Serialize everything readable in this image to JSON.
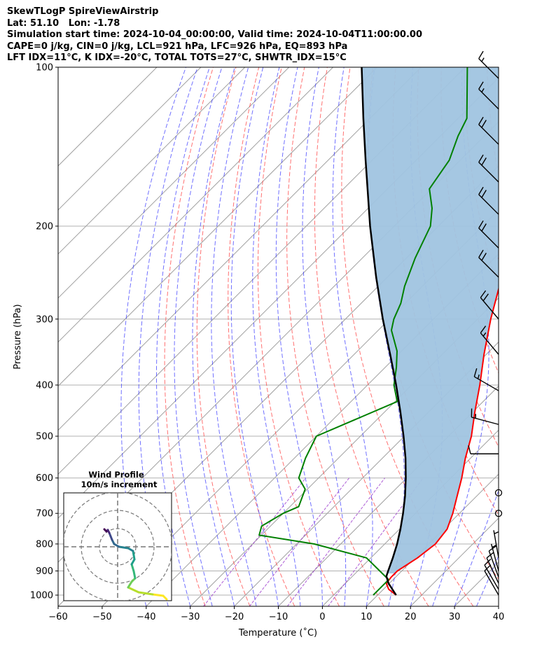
{
  "titles": {
    "line1": "SkewTLogP SpireViewAirstrip",
    "line2": "Lat: 51.10   Lon: -1.78",
    "line3": "Simulation start time: 2024-10-04_00:00:00, Valid time: 2024-10-04T11:00:00.00",
    "line4": "CAPE=0 j/kg, CIN=0 j/kg, LCL=921 hPa, LFC=926 hPa, EQ=893 hPa",
    "line5": "LFT IDX=11°C, K IDX=-20°C, TOTAL TOTS=27°C, SHWTR_IDX=15°C"
  },
  "chart_data": {
    "type": "line",
    "title": "SkewTLogP SpireViewAirstrip",
    "xlabel": "Temperature (˚C)",
    "ylabel": "Pressure (hPa)",
    "xlim": [
      -60,
      40
    ],
    "ylim": [
      1050,
      100
    ],
    "y_scale": "log",
    "x_ticks": [
      "−60",
      "−50",
      "−40",
      "−30",
      "−20",
      "−10",
      "0",
      "10",
      "20",
      "30",
      "40"
    ],
    "y_ticks": [
      "100",
      "200",
      "300",
      "400",
      "500",
      "600",
      "700",
      "800",
      "900",
      "1000"
    ],
    "grid": true,
    "colors": {
      "temperature": "#ff0000",
      "dewpoint": "#008000",
      "parcel": "#000000",
      "cape_fill": "#a0c4e0",
      "dry_adiabat": "#ff4d4d",
      "moist_adiabat": "#3333ff",
      "mixing_ratio": "#9933cc",
      "isotherm": "#a0a0a0"
    },
    "series": [
      {
        "key": "temperature",
        "points": [
          [
            1000,
            14.2
          ],
          [
            975,
            11.2
          ],
          [
            950,
            9.3
          ],
          [
            925,
            9.0
          ],
          [
            900,
            9.0
          ],
          [
            850,
            10.6
          ],
          [
            800,
            11.5
          ],
          [
            750,
            10.8
          ],
          [
            700,
            8.5
          ],
          [
            650,
            5.6
          ],
          [
            600,
            2.5
          ],
          [
            550,
            -1.2
          ],
          [
            500,
            -4.8
          ],
          [
            450,
            -9.5
          ],
          [
            400,
            -14.5
          ],
          [
            350,
            -20.5
          ],
          [
            300,
            -27.0
          ],
          [
            250,
            -34.0
          ],
          [
            230,
            -39.0
          ],
          [
            215,
            -38.5
          ],
          [
            200,
            -38.6
          ],
          [
            180,
            -40.5
          ],
          [
            160,
            -45.0
          ],
          [
            150,
            -47.5
          ],
          [
            140,
            -50.2
          ],
          [
            125,
            -53.6
          ],
          [
            100,
            -60.5
          ]
        ]
      },
      {
        "key": "dewpoint",
        "points": [
          [
            1000,
            9.0
          ],
          [
            975,
            9.0
          ],
          [
            950,
            9.0
          ],
          [
            935,
            9.0
          ],
          [
            900,
            5.0
          ],
          [
            850,
            -1.0
          ],
          [
            800,
            -16.0
          ],
          [
            770,
            -30.5
          ],
          [
            740,
            -32.0
          ],
          [
            700,
            -30.0
          ],
          [
            680,
            -28.0
          ],
          [
            630,
            -30.5
          ],
          [
            600,
            -34.5
          ],
          [
            550,
            -37.5
          ],
          [
            500,
            -40.0
          ],
          [
            430,
            -29.5
          ],
          [
            400,
            -34.0
          ],
          [
            370,
            -37.5
          ],
          [
            345,
            -41.0
          ],
          [
            315,
            -47.0
          ],
          [
            300,
            -49.0
          ],
          [
            280,
            -51.0
          ],
          [
            260,
            -54.0
          ],
          [
            230,
            -58.0
          ],
          [
            200,
            -61.8
          ],
          [
            185,
            -65.5
          ],
          [
            170,
            -70.5
          ],
          [
            150,
            -72.5
          ],
          [
            135,
            -76.0
          ],
          [
            125,
            -78.0
          ],
          [
            100,
            -89.5
          ]
        ]
      },
      {
        "key": "parcel",
        "points": [
          [
            1000,
            14.2
          ],
          [
            950,
            9.8
          ],
          [
            921,
            7.7
          ],
          [
            900,
            6.9
          ],
          [
            850,
            5.0
          ],
          [
            800,
            2.8
          ],
          [
            750,
            0.2
          ],
          [
            700,
            -2.8
          ],
          [
            650,
            -6.2
          ],
          [
            600,
            -10.2
          ],
          [
            550,
            -14.8
          ],
          [
            500,
            -20.2
          ],
          [
            450,
            -26.4
          ],
          [
            400,
            -33.5
          ],
          [
            350,
            -41.8
          ],
          [
            300,
            -51.5
          ],
          [
            250,
            -62.5
          ],
          [
            200,
            -75.5
          ],
          [
            150,
            -91.5
          ],
          [
            125,
            -101.5
          ],
          [
            100,
            -113.5
          ]
        ]
      }
    ],
    "wind_barbs": [
      {
        "p": 1000,
        "speed_kt": 10,
        "dir": 330
      },
      {
        "p": 975,
        "speed_kt": 10,
        "dir": 330
      },
      {
        "p": 950,
        "speed_kt": 10,
        "dir": 335
      },
      {
        "p": 925,
        "speed_kt": 10,
        "dir": 340
      },
      {
        "p": 900,
        "speed_kt": 5,
        "dir": 345
      },
      {
        "p": 850,
        "speed_kt": 5,
        "dir": 350
      },
      {
        "p": 700,
        "speed_kt": 0,
        "dir": 0
      },
      {
        "p": 640,
        "speed_kt": 0,
        "dir": 0
      },
      {
        "p": 540,
        "speed_kt": 10,
        "dir": 270
      },
      {
        "p": 475,
        "speed_kt": 15,
        "dir": 285
      },
      {
        "p": 410,
        "speed_kt": 15,
        "dir": 300
      },
      {
        "p": 350,
        "speed_kt": 15,
        "dir": 320
      },
      {
        "p": 300,
        "speed_kt": 20,
        "dir": 320
      },
      {
        "p": 250,
        "speed_kt": 20,
        "dir": 315
      },
      {
        "p": 220,
        "speed_kt": 20,
        "dir": 315
      },
      {
        "p": 190,
        "speed_kt": 20,
        "dir": 315
      },
      {
        "p": 165,
        "speed_kt": 20,
        "dir": 315
      },
      {
        "p": 140,
        "speed_kt": 20,
        "dir": 315
      },
      {
        "p": 120,
        "speed_kt": 15,
        "dir": 315
      },
      {
        "p": 105,
        "speed_kt": 15,
        "dir": 315
      }
    ],
    "inset": {
      "title": "Wind Profile",
      "subtitle": "10m/s increment",
      "hodograph": [
        [
          7,
          -7.5
        ],
        [
          6.5,
          -7
        ],
        [
          5,
          -6.8
        ],
        [
          3,
          -6.5
        ],
        [
          1.5,
          -5.8
        ],
        [
          2,
          -5
        ],
        [
          2.5,
          -4.5
        ],
        [
          2.3,
          -3.5
        ],
        [
          2,
          -2.5
        ],
        [
          2.4,
          -1.8
        ],
        [
          2.2,
          -0.6
        ],
        [
          1.5,
          -0.2
        ],
        [
          0.2,
          0
        ],
        [
          -0.5,
          0.4
        ],
        [
          -0.8,
          1.0
        ],
        [
          -1,
          1.5
        ],
        [
          -1.2,
          2.0
        ],
        [
          -1.4,
          2.4
        ],
        [
          -1.6,
          2.2
        ],
        [
          -1.9,
          2.5
        ]
      ]
    }
  }
}
